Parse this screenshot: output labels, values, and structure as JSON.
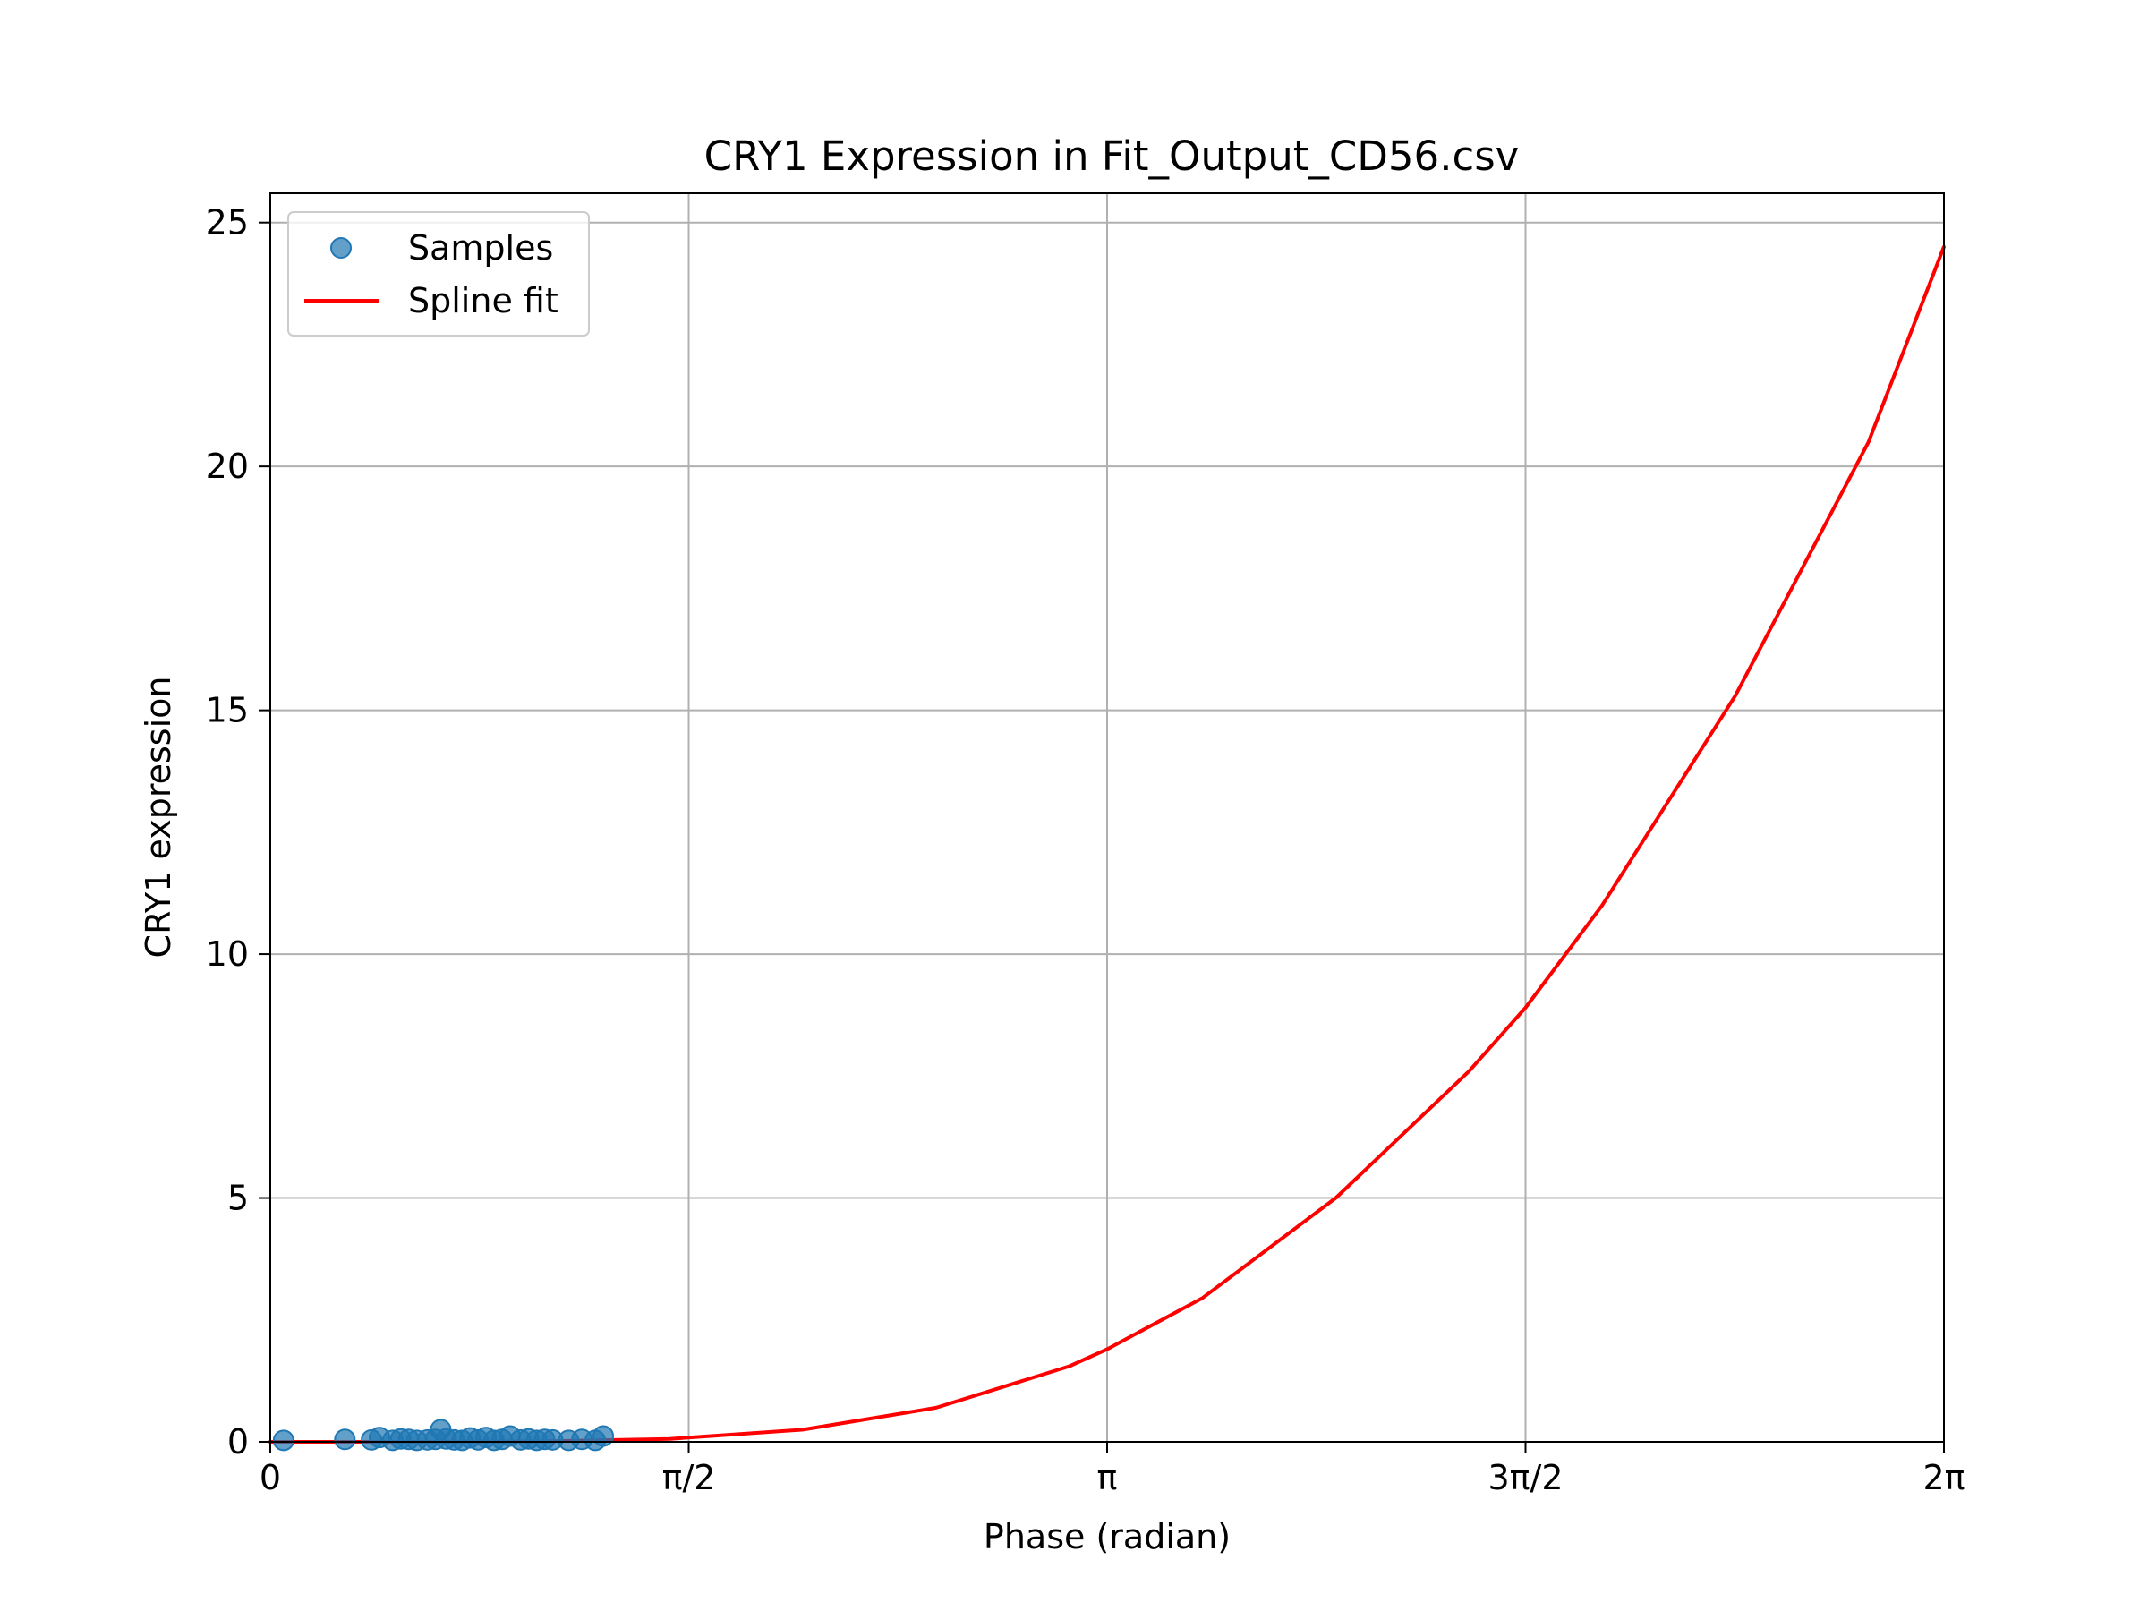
{
  "chart_data": {
    "type": "scatter",
    "title": "CRY1 Expression in Fit_Output_CD56.csv",
    "xlabel": "Phase (radian)",
    "ylabel": "CRY1 expression",
    "xlim": [
      0,
      6.283185
    ],
    "ylim": [
      0,
      25.6
    ],
    "grid": true,
    "legend_position": "upper-left",
    "x_ticks": [
      {
        "value": 0,
        "label": "0"
      },
      {
        "value": 1.570796,
        "label": "π/2"
      },
      {
        "value": 3.141593,
        "label": "π"
      },
      {
        "value": 4.712389,
        "label": "3π/2"
      },
      {
        "value": 6.283185,
        "label": "2π"
      }
    ],
    "y_ticks": [
      {
        "value": 0,
        "label": "0"
      },
      {
        "value": 5,
        "label": "5"
      },
      {
        "value": 10,
        "label": "10"
      },
      {
        "value": 15,
        "label": "15"
      },
      {
        "value": 20,
        "label": "20"
      },
      {
        "value": 25,
        "label": "25"
      }
    ],
    "series": [
      {
        "name": "Samples",
        "kind": "scatter",
        "color": "#1f77b4",
        "points": [
          {
            "x": 0.05,
            "y": 0.03
          },
          {
            "x": 0.28,
            "y": 0.05
          },
          {
            "x": 0.38,
            "y": 0.04
          },
          {
            "x": 0.41,
            "y": 0.09
          },
          {
            "x": 0.46,
            "y": 0.03
          },
          {
            "x": 0.49,
            "y": 0.06
          },
          {
            "x": 0.52,
            "y": 0.05
          },
          {
            "x": 0.55,
            "y": 0.03
          },
          {
            "x": 0.59,
            "y": 0.04
          },
          {
            "x": 0.62,
            "y": 0.05
          },
          {
            "x": 0.64,
            "y": 0.25
          },
          {
            "x": 0.66,
            "y": 0.06
          },
          {
            "x": 0.69,
            "y": 0.04
          },
          {
            "x": 0.72,
            "y": 0.03
          },
          {
            "x": 0.75,
            "y": 0.08
          },
          {
            "x": 0.78,
            "y": 0.04
          },
          {
            "x": 0.81,
            "y": 0.09
          },
          {
            "x": 0.84,
            "y": 0.03
          },
          {
            "x": 0.87,
            "y": 0.05
          },
          {
            "x": 0.9,
            "y": 0.12
          },
          {
            "x": 0.94,
            "y": 0.04
          },
          {
            "x": 0.97,
            "y": 0.06
          },
          {
            "x": 1.0,
            "y": 0.03
          },
          {
            "x": 1.03,
            "y": 0.05
          },
          {
            "x": 1.06,
            "y": 0.04
          },
          {
            "x": 1.12,
            "y": 0.03
          },
          {
            "x": 1.17,
            "y": 0.05
          },
          {
            "x": 1.22,
            "y": 0.03
          },
          {
            "x": 1.25,
            "y": 0.12
          }
        ]
      },
      {
        "name": "Spline fit",
        "kind": "line",
        "color": "#ff0000",
        "points": [
          {
            "x": 0.0,
            "y": 0.0
          },
          {
            "x": 0.5,
            "y": 0.0
          },
          {
            "x": 1.0,
            "y": 0.01
          },
          {
            "x": 1.5,
            "y": 0.06
          },
          {
            "x": 2.0,
            "y": 0.25
          },
          {
            "x": 2.5,
            "y": 0.7
          },
          {
            "x": 3.0,
            "y": 1.55
          },
          {
            "x": 3.142,
            "y": 1.9
          },
          {
            "x": 3.5,
            "y": 2.95
          },
          {
            "x": 4.0,
            "y": 5.0
          },
          {
            "x": 4.5,
            "y": 7.6
          },
          {
            "x": 4.712,
            "y": 8.9
          },
          {
            "x": 5.0,
            "y": 11.0
          },
          {
            "x": 5.5,
            "y": 15.3
          },
          {
            "x": 6.0,
            "y": 20.5
          },
          {
            "x": 6.283,
            "y": 24.5
          }
        ]
      }
    ]
  }
}
